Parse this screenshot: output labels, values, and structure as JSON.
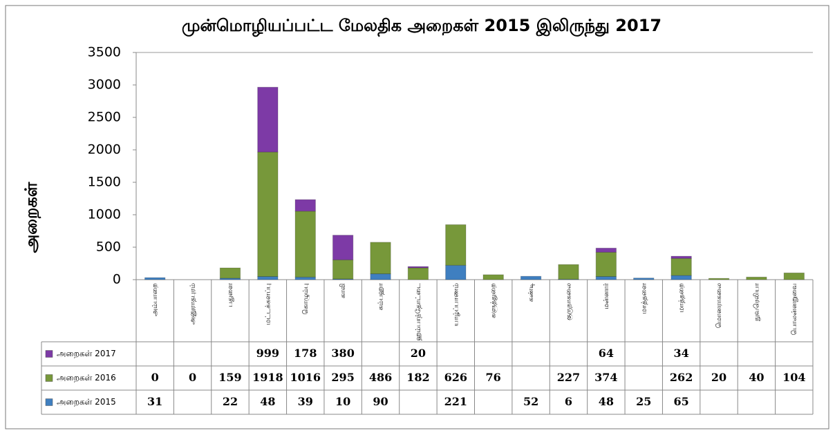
{
  "chart_data": {
    "type": "bar",
    "stacked": true,
    "title": "முன்மொழியப்பட்ட மேலதிக அறைகள் 2015 இலிருந்து 2017",
    "y_label": "அறைகள்",
    "categories": [
      "அம்பாறை",
      "அனுராதபுரம்",
      "பதுளை",
      "மட்டக்களப்பு",
      "கொழும்பு",
      "காலி",
      "கம்பஹா",
      "ஹம்பாந்தோட்டை",
      "யாழ்ப்பாணம்",
      "களுத்துறை",
      "கண்டி",
      "குருநாகலை",
      "மன்னார்",
      "மாத்தளை",
      "மாத்தறை",
      "மொனராகலை",
      "நுவரெலியா",
      "பொலன்னறுவை"
    ],
    "series": [
      {
        "name": "அறைகள் 2015",
        "color": "#3f7fc0",
        "values": [
          31,
          null,
          22,
          48,
          39,
          10,
          90,
          null,
          221,
          null,
          52,
          6,
          48,
          25,
          65,
          null,
          null,
          null
        ]
      },
      {
        "name": "அறைகள் 2016",
        "color": "#77983a",
        "values": [
          0,
          0,
          159,
          1918,
          1016,
          295,
          486,
          182,
          626,
          76,
          null,
          227,
          374,
          null,
          262,
          20,
          40,
          104
        ]
      },
      {
        "name": "அறைகள் 2017",
        "color": "#7d3aa6",
        "values": [
          null,
          null,
          null,
          999,
          178,
          380,
          null,
          20,
          null,
          null,
          null,
          null,
          64,
          null,
          34,
          null,
          null,
          null
        ]
      }
    ],
    "ylim": [
      0,
      3500
    ],
    "yticks": [
      0,
      500,
      1000,
      1500,
      2000,
      2500,
      3000,
      3500
    ],
    "grid": false
  }
}
